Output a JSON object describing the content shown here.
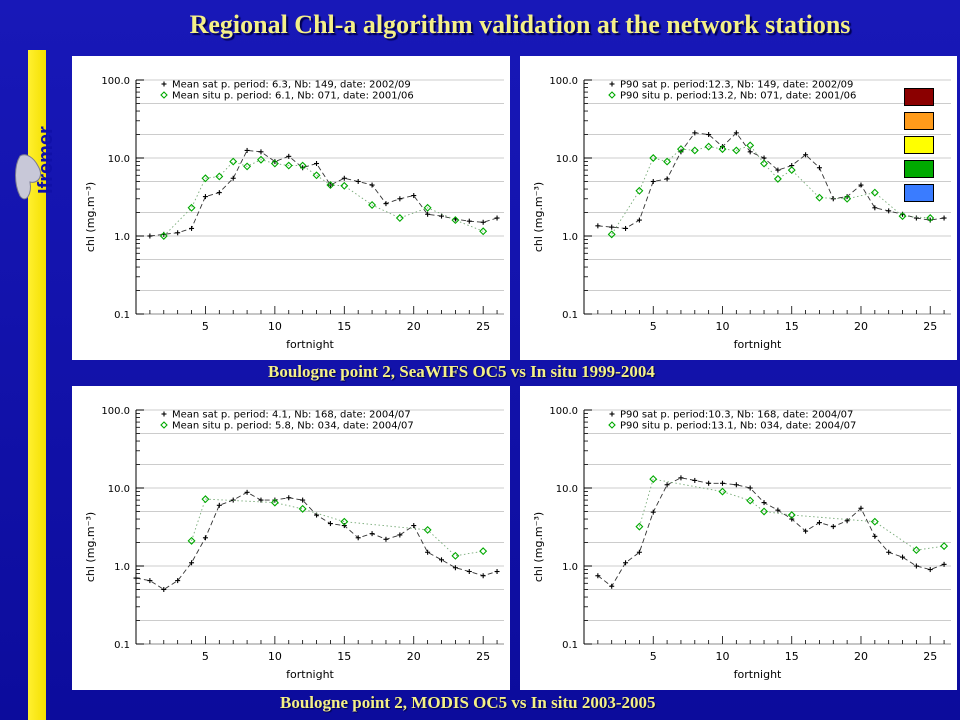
{
  "slide": {
    "title": "Regional Chl-a algorithm validation at the network stations",
    "logo_text": "Ifremer",
    "caption_top": "Boulogne point 2, SeaWIFS OC5 vs In situ 1999-2004",
    "caption_bottom": "Boulogne point 2, MODIS OC5 vs In situ 2003-2005"
  },
  "swatch_colors": [
    "#8b0000",
    "#ff9b1a",
    "#ffff00",
    "#00aa00",
    "#3a7cff"
  ],
  "chart_data": [
    {
      "type": "line",
      "xlabel": "fortnight",
      "ylabel": "chl (mg.m⁻³)",
      "xticks": [
        5,
        10,
        15,
        20,
        25
      ],
      "xlim": [
        0,
        26.5
      ],
      "yscale": "log",
      "ylim": [
        0.1,
        100
      ],
      "yticks": [
        "100.0",
        "10.0",
        "1.0",
        "0.1"
      ],
      "series": [
        {
          "name": "Mean sat p. period: 6.3, Nb: 149, date: 2002/09",
          "color": "#000000",
          "marker": "plus",
          "line": "dashed",
          "x": [
            1,
            2,
            3,
            4,
            5,
            6,
            7,
            8,
            9,
            10,
            11,
            12,
            13,
            14,
            15,
            16,
            17,
            18,
            19,
            20,
            21,
            22,
            23,
            24,
            25,
            26
          ],
          "y": [
            1.0,
            1.05,
            1.1,
            1.25,
            3.2,
            3.6,
            5.5,
            12.5,
            12.0,
            9.0,
            10.5,
            7.5,
            8.5,
            4.5,
            5.5,
            5.0,
            4.5,
            2.6,
            3.0,
            3.3,
            1.9,
            1.8,
            1.65,
            1.55,
            1.5,
            1.7
          ]
        },
        {
          "name": "Mean situ p. period: 6.1, Nb: 071, date: 2001/06",
          "color": "#00aa00",
          "marker": "diamond",
          "line": "dotted",
          "x": [
            2,
            4,
            5,
            6,
            7,
            8,
            9,
            10,
            11,
            12,
            13,
            14,
            15,
            17,
            19,
            21,
            23,
            25
          ],
          "y": [
            1.0,
            2.3,
            5.5,
            5.8,
            9.0,
            7.8,
            9.5,
            8.5,
            8.0,
            8.0,
            6.0,
            4.5,
            4.4,
            2.5,
            1.7,
            2.3,
            1.6,
            1.15
          ]
        }
      ]
    },
    {
      "type": "line",
      "xlabel": "fortnight",
      "ylabel": "chl (mg.m⁻³)",
      "xticks": [
        5,
        10,
        15,
        20,
        25
      ],
      "xlim": [
        0,
        26.5
      ],
      "yscale": "log",
      "ylim": [
        0.1,
        100
      ],
      "yticks": [
        "100.0",
        "10.0",
        "1.0",
        "0.1"
      ],
      "series": [
        {
          "name": "P90 sat p. period:12.3, Nb: 149, date: 2002/09",
          "color": "#000000",
          "marker": "plus",
          "line": "dashed",
          "x": [
            1,
            2,
            3,
            4,
            5,
            6,
            7,
            8,
            9,
            10,
            11,
            12,
            13,
            14,
            15,
            16,
            17,
            18,
            19,
            20,
            21,
            22,
            23,
            24,
            25,
            26
          ],
          "y": [
            1.35,
            1.3,
            1.25,
            1.6,
            5.0,
            5.4,
            12.0,
            21.0,
            20.0,
            14.0,
            21.0,
            12.0,
            10.0,
            7.0,
            8.0,
            11.0,
            7.5,
            3.0,
            3.2,
            4.5,
            2.3,
            2.1,
            1.9,
            1.7,
            1.6,
            1.7
          ]
        },
        {
          "name": "P90 situ p. period:13.2, Nb: 071, date: 2001/06",
          "color": "#00aa00",
          "marker": "diamond",
          "line": "dotted",
          "x": [
            2,
            4,
            5,
            6,
            7,
            8,
            9,
            10,
            11,
            12,
            13,
            14,
            15,
            17,
            19,
            21,
            23,
            25
          ],
          "y": [
            1.05,
            3.8,
            10.0,
            9.0,
            13.0,
            12.5,
            14.0,
            13.0,
            12.5,
            14.5,
            8.5,
            5.4,
            7.0,
            3.1,
            3.0,
            3.6,
            1.8,
            1.7
          ]
        }
      ]
    },
    {
      "type": "line",
      "xlabel": "fortnight",
      "ylabel": "chl (mg.m⁻³)",
      "xticks": [
        5,
        10,
        15,
        20,
        25
      ],
      "xlim": [
        0,
        26.5
      ],
      "yscale": "log",
      "ylim": [
        0.1,
        100
      ],
      "yticks": [
        "100.0",
        "10.0",
        "1.0",
        "0.1"
      ],
      "series": [
        {
          "name": "Mean sat p. period: 4.1, Nb: 168, date: 2004/07",
          "color": "#000000",
          "marker": "plus",
          "line": "dashed",
          "x": [
            0,
            1,
            2,
            3,
            4,
            5,
            6,
            7,
            8,
            9,
            10,
            11,
            12,
            13,
            14,
            15,
            16,
            17,
            18,
            19,
            20,
            21,
            22,
            23,
            24,
            25,
            26
          ],
          "y": [
            0.7,
            0.65,
            0.5,
            0.65,
            1.1,
            2.3,
            6.0,
            7.0,
            8.8,
            7.0,
            7.0,
            7.5,
            7.0,
            4.5,
            3.5,
            3.3,
            2.3,
            2.6,
            2.2,
            2.5,
            3.3,
            1.5,
            1.2,
            0.95,
            0.85,
            0.75,
            0.85
          ]
        },
        {
          "name": "Mean situ p. period: 5.8, Nb: 034, date: 2004/07",
          "color": "#00aa00",
          "marker": "diamond",
          "line": "dotted",
          "x": [
            4,
            5,
            10,
            12,
            15,
            21,
            23,
            25
          ],
          "y": [
            2.1,
            7.2,
            6.5,
            5.4,
            3.7,
            2.9,
            1.35,
            1.55
          ]
        }
      ]
    },
    {
      "type": "line",
      "xlabel": "fortnight",
      "ylabel": "chl (mg.m⁻³)",
      "xticks": [
        5,
        10,
        15,
        20,
        25
      ],
      "xlim": [
        0,
        26.5
      ],
      "yscale": "log",
      "ylim": [
        0.1,
        100
      ],
      "yticks": [
        "100.0",
        "10.0",
        "1.0",
        "0.1"
      ],
      "series": [
        {
          "name": "P90 sat p. period:10.3, Nb: 168, date: 2004/07",
          "color": "#000000",
          "marker": "plus",
          "line": "dashed",
          "x": [
            1,
            2,
            3,
            4,
            5,
            6,
            7,
            8,
            9,
            10,
            11,
            12,
            13,
            14,
            15,
            16,
            17,
            18,
            19,
            20,
            21,
            22,
            23,
            24,
            25,
            26
          ],
          "y": [
            0.75,
            0.55,
            1.1,
            1.5,
            4.9,
            11.0,
            13.5,
            12.5,
            11.5,
            11.5,
            11.0,
            10.0,
            6.5,
            5.2,
            4.0,
            2.8,
            3.6,
            3.2,
            3.8,
            5.5,
            2.4,
            1.5,
            1.3,
            1.0,
            0.9,
            1.05
          ]
        },
        {
          "name": "P90 situ p. period:13.1, Nb: 034, date: 2004/07",
          "color": "#00aa00",
          "marker": "diamond",
          "line": "dotted",
          "x": [
            4,
            5,
            10,
            12,
            13,
            15,
            21,
            24,
            26
          ],
          "y": [
            3.2,
            13.0,
            9.0,
            6.9,
            5.0,
            4.5,
            3.7,
            1.6,
            1.8
          ]
        }
      ]
    }
  ]
}
